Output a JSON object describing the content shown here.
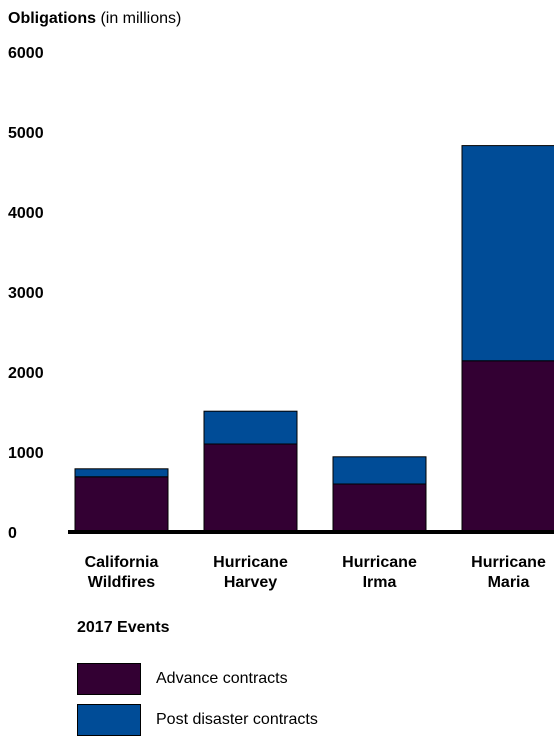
{
  "chart_data": {
    "type": "bar",
    "stacked": true,
    "ylabel_bold": "Obligations",
    "ylabel_rest": " (in millions)",
    "xlabel": "2017 Events",
    "ylim": [
      0,
      6000
    ],
    "yticks": [
      "0",
      "1000",
      "2000",
      "3000",
      "4000",
      "5000",
      "6000"
    ],
    "categories": [
      [
        "California",
        "Wildfires"
      ],
      [
        "Hurricane",
        "Harvey"
      ],
      [
        "Hurricane",
        "Irma"
      ],
      [
        "Hurricane",
        "Maria"
      ]
    ],
    "series": [
      {
        "name": "Advance contracts",
        "color": "#330033",
        "values": [
          690,
          1100,
          600,
          2140
        ]
      },
      {
        "name": "Post disaster contracts",
        "color": "#004c97",
        "values": [
          100,
          410,
          340,
          2690
        ]
      }
    ],
    "grid": false,
    "legend_position": "bottom-left"
  }
}
